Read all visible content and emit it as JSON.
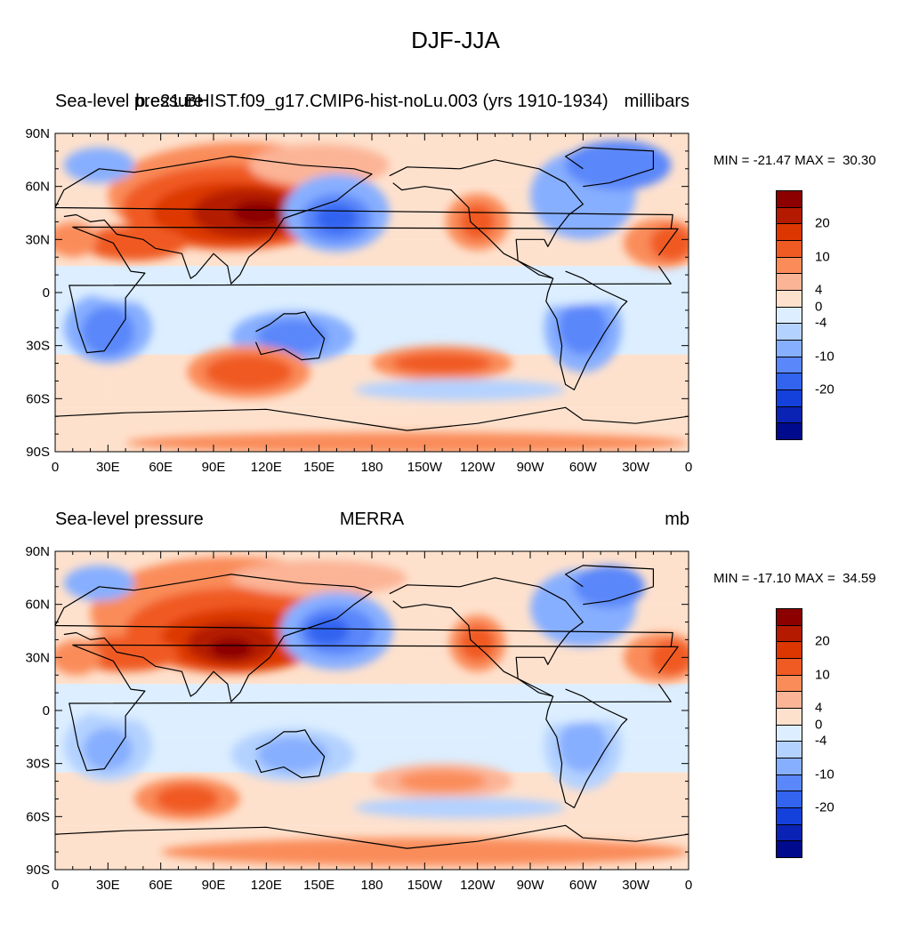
{
  "figure": {
    "title": "DJF-JJA"
  },
  "panels": [
    {
      "left_label": "Sea-level pressure",
      "center_label": "b.e21.BHIST.f09_g17.CMIP6-hist-noLu.003 (yrs 1910-1934)",
      "right_label": "millibars",
      "min_label": "MIN = -21.47",
      "max_label": "MAX =  30.30"
    },
    {
      "left_label": "Sea-level pressure",
      "center_label": "MERRA",
      "right_label": "mb",
      "min_label": "MIN = -17.10",
      "max_label": "MAX =  34.59"
    }
  ],
  "axes": {
    "lon_ticks": [
      "0",
      "30E",
      "60E",
      "90E",
      "120E",
      "150E",
      "180",
      "150W",
      "120W",
      "90W",
      "60W",
      "30W",
      "0"
    ],
    "lat_ticks": [
      "90N",
      "60N",
      "30N",
      "0",
      "30S",
      "60S",
      "90S"
    ]
  },
  "colorbar": {
    "labels": [
      "20",
      "10",
      "4",
      "0",
      "-4",
      "-10",
      "-20"
    ],
    "colors": [
      "#8c0000",
      "#b41a00",
      "#dc3700",
      "#f05a23",
      "#fa8c5a",
      "#fcb496",
      "#fee1cd",
      "#dceeff",
      "#b4d2ff",
      "#87afff",
      "#5a87fa",
      "#3264f0",
      "#1440dc",
      "#0a23b4",
      "#000a8c"
    ]
  }
}
